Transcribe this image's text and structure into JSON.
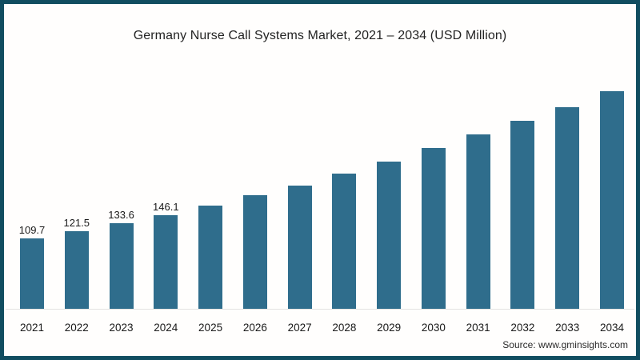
{
  "title": "Germany Nurse Call Systems Market, 2021 – 2034 (USD Million)",
  "source": "Source: www.gminsights.com",
  "colors": {
    "bar": "#2f6d8c",
    "frame_border": "#114d60",
    "axis_line": "#e3e3e1",
    "text": "#1a1a1a"
  },
  "chart_data": {
    "type": "bar",
    "title": "Germany Nurse Call Systems Market, 2021 – 2034 (USD Million)",
    "categories": [
      "2021",
      "2022",
      "2023",
      "2024",
      "2025",
      "2026",
      "2027",
      "2028",
      "2029",
      "2030",
      "2031",
      "2032",
      "2033",
      "2034"
    ],
    "values": [
      109.7,
      121.5,
      133.6,
      146.1,
      160.2,
      176.2,
      191.1,
      209.6,
      228.8,
      249.4,
      270.1,
      291.5,
      312.9,
      337.2
    ],
    "value_labels": [
      "109.7",
      "121.5",
      "133.6",
      "146.1",
      "",
      "",
      "",
      "",
      "",
      "",
      "",
      "",
      "",
      ""
    ],
    "xlabel": "",
    "ylabel": "",
    "ylim": [
      0,
      345
    ],
    "grid": false,
    "legend": false,
    "bar_color": "#2f6d8c",
    "source": "Source: www.gminsights.com"
  }
}
